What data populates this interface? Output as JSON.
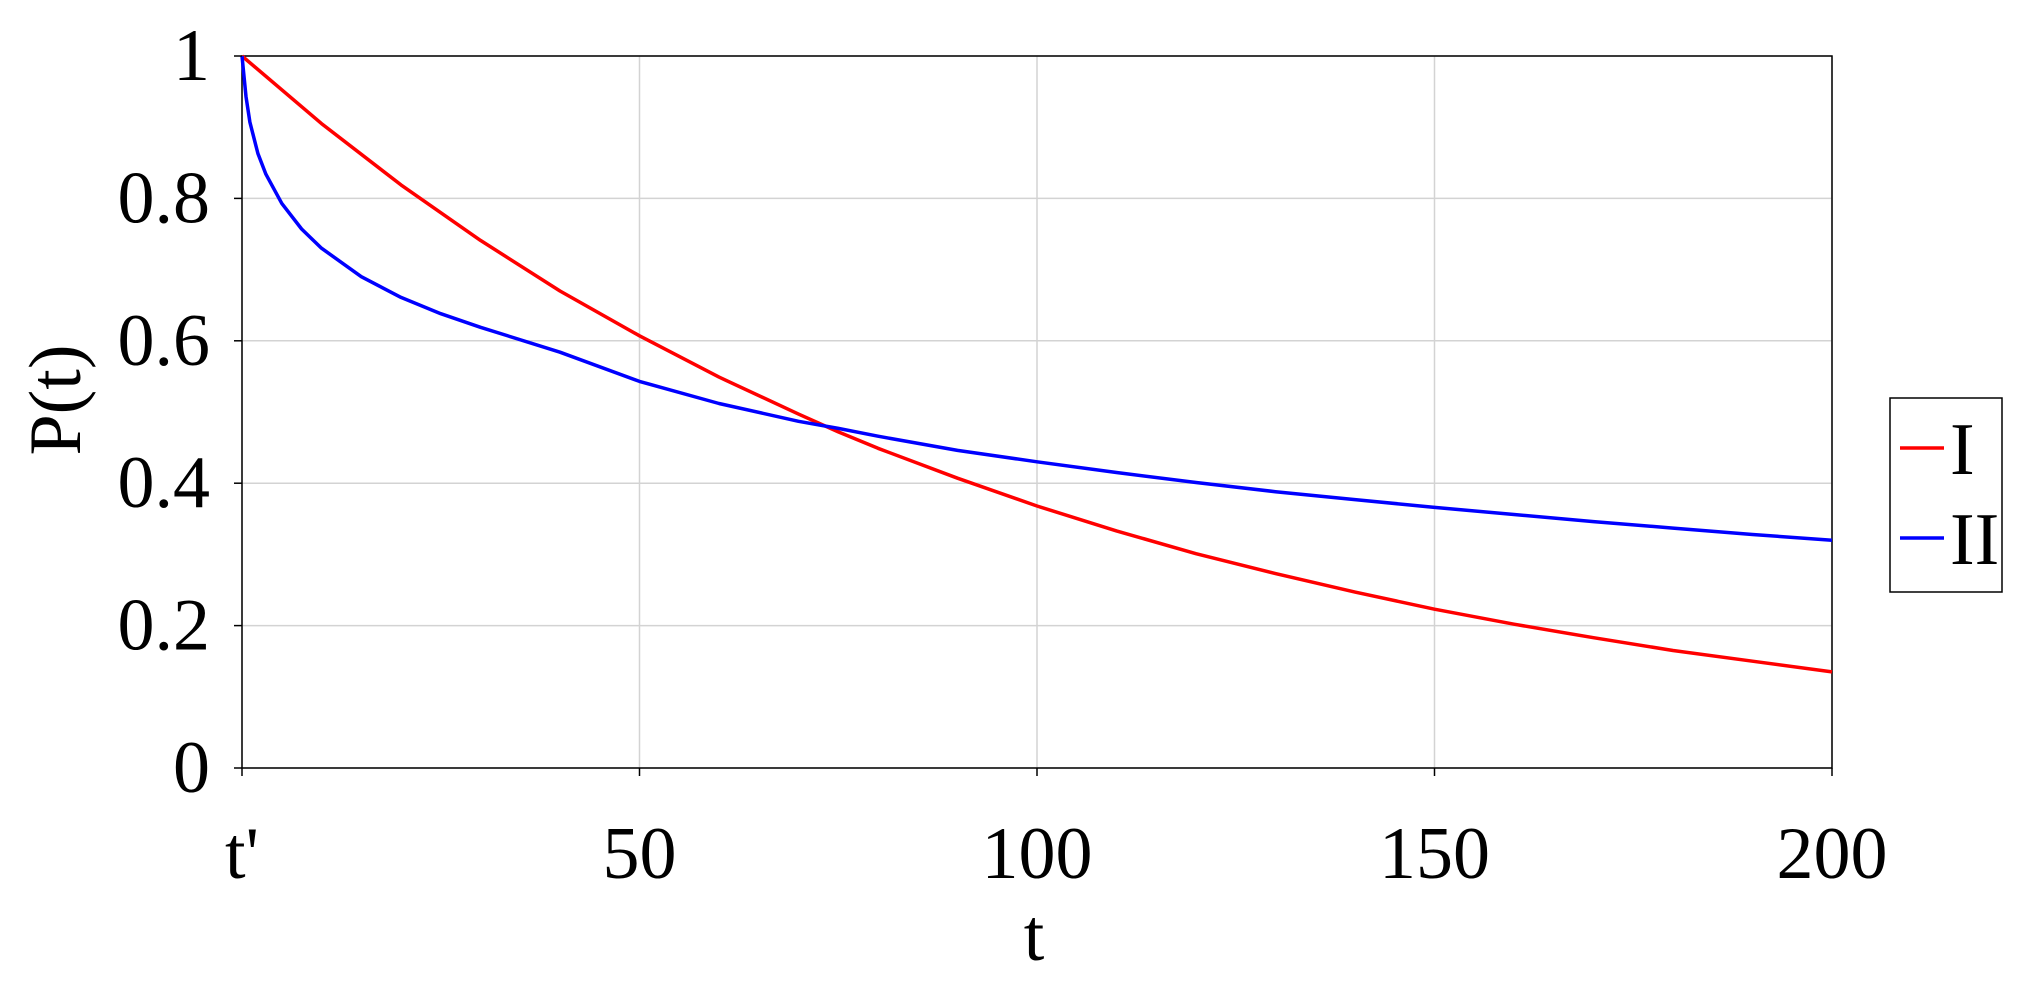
{
  "chart_data": {
    "type": "line",
    "xlabel": "t",
    "ylabel": "P(t)",
    "xlim": [
      0,
      200
    ],
    "ylim": [
      0,
      1
    ],
    "grid": true,
    "legend_position": "right",
    "x_ticks": [
      {
        "value": 0,
        "label": "t'"
      },
      {
        "value": 50,
        "label": "50"
      },
      {
        "value": 100,
        "label": "100"
      },
      {
        "value": 150,
        "label": "150"
      },
      {
        "value": 200,
        "label": "200"
      }
    ],
    "y_ticks": [
      {
        "value": 0,
        "label": "0"
      },
      {
        "value": 0.2,
        "label": "0.2"
      },
      {
        "value": 0.4,
        "label": "0.4"
      },
      {
        "value": 0.6,
        "label": "0.6"
      },
      {
        "value": 0.8,
        "label": "0.8"
      },
      {
        "value": 1,
        "label": "1"
      }
    ],
    "series": [
      {
        "name": "I",
        "color": "#ff0000",
        "x": [
          0,
          10,
          20,
          30,
          40,
          50,
          60,
          70,
          75,
          80,
          90,
          100,
          110,
          120,
          130,
          140,
          150,
          160,
          170,
          180,
          190,
          200
        ],
        "y": [
          1.0,
          0.905,
          0.819,
          0.741,
          0.67,
          0.607,
          0.549,
          0.497,
          0.472,
          0.449,
          0.407,
          0.368,
          0.333,
          0.301,
          0.273,
          0.247,
          0.223,
          0.202,
          0.183,
          0.165,
          0.15,
          0.135
        ]
      },
      {
        "name": "II",
        "color": "#0000ff",
        "x": [
          0,
          0.5,
          1,
          2,
          3,
          5,
          7.5,
          10,
          15,
          20,
          25,
          30,
          40,
          50,
          60,
          70,
          75,
          80,
          90,
          100,
          110,
          120,
          130,
          140,
          150,
          160,
          170,
          180,
          190,
          200
        ],
        "y": [
          1.0,
          0.943,
          0.907,
          0.863,
          0.834,
          0.793,
          0.757,
          0.73,
          0.69,
          0.661,
          0.638,
          0.619,
          0.584,
          0.543,
          0.512,
          0.487,
          0.477,
          0.466,
          0.446,
          0.43,
          0.415,
          0.401,
          0.388,
          0.377,
          0.366,
          0.356,
          0.346,
          0.337,
          0.328,
          0.32
        ]
      }
    ]
  }
}
